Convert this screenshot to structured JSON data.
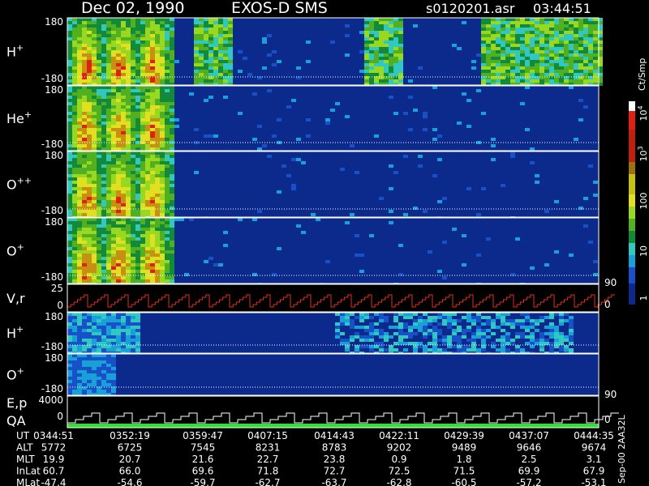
{
  "header": {
    "title": "Dec 02, 1990",
    "instrument": "EXOS-D SMS",
    "file": "s0120201.asr",
    "time": "03:44:51"
  },
  "panels": [
    {
      "label": "H",
      "sup": "+",
      "ticks": [
        "180",
        "-180"
      ]
    },
    {
      "label": "He",
      "sup": "+",
      "ticks": [
        "180",
        "-180"
      ]
    },
    {
      "label": "O",
      "sup": "++",
      "ticks": [
        "180",
        "-180"
      ]
    },
    {
      "label": "O",
      "sup": "+",
      "ticks": [
        "180",
        "-180"
      ],
      "right": "90"
    },
    {
      "label": "V,r",
      "ticks": [
        "25",
        "0"
      ],
      "right": "0"
    },
    {
      "label": "H",
      "sup": "+",
      "ticks": [
        "180",
        "-180"
      ]
    },
    {
      "label": "O",
      "sup": "+",
      "ticks": [
        "180",
        "-180"
      ],
      "right": "90"
    },
    {
      "label": "E,p",
      "label2": "QA",
      "ticks": [
        "4000",
        "0"
      ],
      "right": "0"
    }
  ],
  "colorbar": {
    "unit": "Ct/Smp",
    "labels": [
      {
        "text": "10",
        "sup": "4"
      },
      {
        "text": "10",
        "sup": "3"
      },
      {
        "text": "100"
      },
      {
        "text": "10"
      },
      {
        "text": "1"
      }
    ]
  },
  "table": {
    "rows": [
      {
        "label": "UT",
        "cells": [
          "0344:51",
          "0352:19",
          "0359:47",
          "0407:15",
          "0414:43",
          "0422:11",
          "0429:39",
          "0437:07",
          "0444:35"
        ]
      },
      {
        "label": "ALT",
        "cells": [
          "5772",
          "6725",
          "7545",
          "8231",
          "8783",
          "9202",
          "9489",
          "9646",
          "9674"
        ]
      },
      {
        "label": "MLT",
        "cells": [
          "19.9",
          "20.7",
          "21.6",
          "22.7",
          "23.8",
          "0.9",
          "1.8",
          "2.5",
          "3.1"
        ]
      },
      {
        "label": "InLat",
        "cells": [
          "60.7",
          "66.0",
          "69.6",
          "71.8",
          "72.7",
          "72.5",
          "71.5",
          "69.9",
          "67.9"
        ]
      },
      {
        "label": "MLat",
        "cells": [
          "-47.4",
          "-54.6",
          "-59.7",
          "-62.7",
          "-63.7",
          "-62.8",
          "-60.5",
          "-57.2",
          "-53.1"
        ]
      }
    ]
  },
  "note": "Sep-00 2AA32L"
}
